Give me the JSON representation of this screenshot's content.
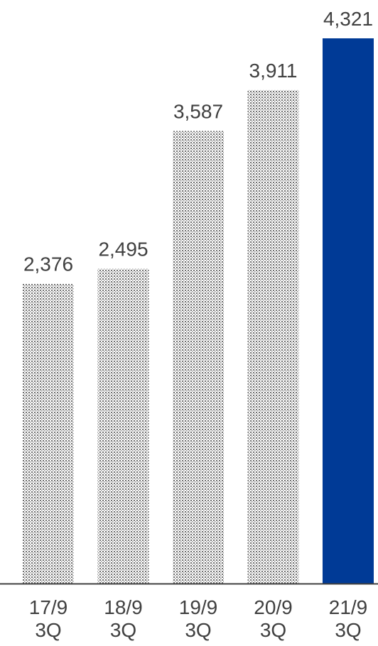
{
  "chart_data": {
    "type": "bar",
    "categories": [
      [
        "17/9",
        "3Q"
      ],
      [
        "18/9",
        "3Q"
      ],
      [
        "19/9",
        "3Q"
      ],
      [
        "20/9",
        "3Q"
      ],
      [
        "21/9",
        "3Q"
      ]
    ],
    "values": [
      2376,
      2495,
      3587,
      3911,
      4321
    ],
    "data_labels": [
      "2,376",
      "2,495",
      "3,587",
      "3,911",
      "4,321"
    ],
    "title": "",
    "xlabel": "",
    "ylabel": "",
    "ylim": [
      0,
      4321
    ],
    "grid": false,
    "legend": "none",
    "highlight_index": 4,
    "colors": {
      "default_bar": "#7f7f7f",
      "default_bar_background": "#ffffff",
      "highlight_bar": "#003a96",
      "axis": "#404040",
      "text": "#404040"
    }
  }
}
